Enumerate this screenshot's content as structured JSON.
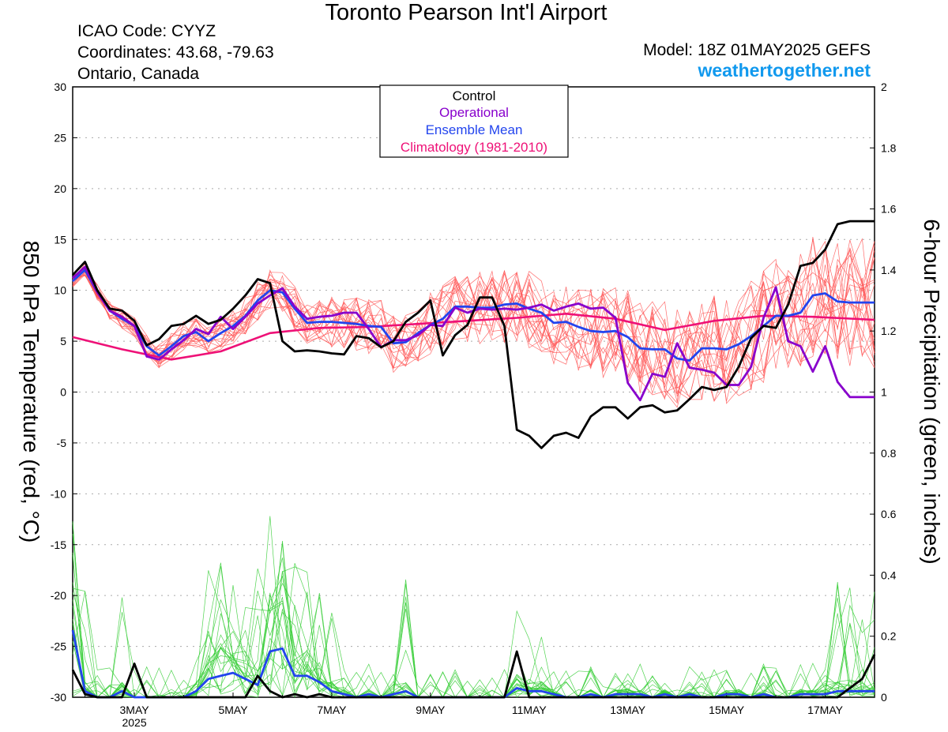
{
  "header": {
    "title": "Toronto Pearson Int'l Airport",
    "icao": "ICAO Code: CYYZ",
    "coords": "Coordinates: 43.68, -79.63",
    "region": "Ontario, Canada",
    "model": "Model: 18Z 01MAY2025 GEFS",
    "site": "weathertogether.net"
  },
  "colors": {
    "control": "#000000",
    "operational": "#8800cc",
    "ensemble_mean": "#2244ee",
    "climatology": "#ee1177",
    "members_temp": "#ff5555",
    "members_precip": "#33cc33",
    "site": "#1199ee"
  },
  "chart_data": {
    "type": "line",
    "title": "Toronto Pearson Int'l Airport",
    "ylabel": "850 hPa Temperature (red, °C)",
    "y2label": "6-hour Precipitation (green, inches)",
    "ylim": [
      -30,
      30
    ],
    "y2lim": [
      0,
      2
    ],
    "yticks": [
      -30,
      -25,
      -20,
      -15,
      -10,
      -5,
      0,
      5,
      10,
      15,
      20,
      25,
      30
    ],
    "y2ticks": [
      0,
      0.2,
      0.4,
      0.6,
      0.8,
      1,
      1.2,
      1.4,
      1.6,
      1.8,
      2
    ],
    "x_unit": "hours since 2025-05-01 18Z",
    "xlim": [
      0,
      390
    ],
    "xticks": [
      {
        "x": 30,
        "label": "3MAY",
        "sub": "2025"
      },
      {
        "x": 78,
        "label": "5MAY"
      },
      {
        "x": 126,
        "label": "7MAY"
      },
      {
        "x": 174,
        "label": "9MAY"
      },
      {
        "x": 222,
        "label": "11MAY"
      },
      {
        "x": 270,
        "label": "13MAY"
      },
      {
        "x": 318,
        "label": "15MAY"
      },
      {
        "x": 366,
        "label": "17MAY"
      }
    ],
    "legend": [
      "Control",
      "Operational",
      "Ensemble Mean",
      "Climatology (1981-2010)"
    ],
    "legend_position": "top-center",
    "grid": true,
    "series": [
      {
        "name": "Climatology (1981-2010)",
        "axis": "temp",
        "x": [
          0,
          24,
          48,
          72,
          96,
          120,
          144,
          168,
          192,
          216,
          240,
          264,
          288,
          312,
          336,
          360,
          390
        ],
        "values": [
          5.4,
          4.2,
          3.2,
          4.0,
          5.8,
          6.3,
          6.4,
          6.7,
          7.0,
          7.3,
          7.7,
          7.2,
          6.1,
          7.0,
          7.5,
          7.4,
          7.1
        ]
      },
      {
        "name": "Ensemble Mean",
        "axis": "temp",
        "x": [
          0,
          6,
          12,
          18,
          24,
          30,
          36,
          42,
          48,
          54,
          60,
          66,
          72,
          78,
          84,
          90,
          96,
          102,
          108,
          114,
          120,
          126,
          132,
          138,
          144,
          150,
          156,
          162,
          168,
          174,
          180,
          186,
          192,
          198,
          204,
          210,
          216,
          222,
          228,
          234,
          240,
          246,
          252,
          258,
          264,
          270,
          276,
          282,
          288,
          294,
          300,
          306,
          312,
          318,
          324,
          330,
          336,
          342,
          348,
          354,
          360,
          366,
          372,
          378,
          384,
          390
        ],
        "values": [
          10.9,
          12.0,
          9.8,
          8.0,
          7.2,
          6.5,
          4.5,
          3.6,
          4.5,
          5.5,
          5.9,
          5.0,
          5.8,
          6.5,
          7.5,
          9.0,
          10.0,
          9.8,
          8.2,
          6.8,
          6.9,
          6.9,
          6.8,
          6.7,
          6.5,
          6.4,
          4.8,
          4.9,
          5.8,
          6.6,
          7.2,
          8.4,
          8.4,
          8.3,
          8.3,
          8.6,
          8.7,
          8.2,
          7.8,
          6.8,
          6.9,
          6.4,
          6.0,
          5.9,
          6.0,
          5.4,
          4.3,
          4.2,
          4.2,
          3.3,
          3.1,
          4.3,
          4.3,
          4.2,
          4.7,
          5.5,
          6.5,
          7.5,
          7.5,
          7.8,
          9.5,
          9.7,
          8.9,
          8.8,
          8.8,
          8.8
        ]
      },
      {
        "name": "Operational",
        "axis": "temp",
        "x": [
          0,
          6,
          12,
          18,
          24,
          30,
          36,
          42,
          48,
          54,
          60,
          66,
          72,
          78,
          84,
          90,
          96,
          102,
          108,
          114,
          120,
          126,
          132,
          138,
          144,
          150,
          156,
          162,
          168,
          174,
          180,
          186,
          192,
          198,
          204,
          210,
          216,
          222,
          228,
          234,
          240,
          246,
          252,
          258,
          264,
          270,
          276,
          282,
          288,
          294,
          300,
          306,
          312,
          318,
          324,
          330,
          336,
          342,
          348,
          354,
          360,
          366,
          372,
          378,
          384,
          390
        ],
        "values": [
          11.2,
          12.3,
          9.8,
          8.0,
          7.4,
          6.5,
          3.5,
          3.2,
          4.2,
          5.1,
          6.2,
          5.7,
          7.4,
          6.2,
          7.4,
          8.7,
          9.5,
          10.2,
          8.4,
          7.2,
          7.4,
          7.5,
          7.8,
          7.8,
          6.2,
          4.4,
          5.1,
          5.1,
          5.6,
          6.6,
          6.5,
          8.3,
          7.8,
          8.2,
          8.1,
          8.2,
          8.1,
          8.3,
          8.6,
          8.0,
          8.4,
          8.7,
          8.2,
          8.3,
          7.3,
          0.9,
          -0.8,
          1.8,
          1.5,
          4.8,
          2.4,
          2.2,
          1.9,
          0.7,
          0.7,
          2.5,
          7.3,
          10.3,
          5.0,
          4.5,
          2.0,
          4.5,
          1.0,
          -0.5,
          -0.5,
          -0.5
        ]
      },
      {
        "name": "Control",
        "axis": "temp",
        "x": [
          0,
          6,
          12,
          18,
          24,
          30,
          36,
          42,
          48,
          54,
          60,
          66,
          72,
          78,
          84,
          90,
          96,
          102,
          108,
          114,
          120,
          126,
          132,
          138,
          144,
          150,
          156,
          162,
          168,
          174,
          180,
          186,
          192,
          198,
          204,
          210,
          216,
          222,
          228,
          234,
          240,
          246,
          252,
          258,
          264,
          270,
          276,
          282,
          288,
          294,
          300,
          306,
          312,
          318,
          324,
          330,
          336,
          342,
          348,
          354,
          360,
          366,
          372,
          378,
          384,
          390
        ],
        "values": [
          11.5,
          12.8,
          10.0,
          8.2,
          8.0,
          7.0,
          4.6,
          5.2,
          6.5,
          6.7,
          7.5,
          6.7,
          7.1,
          8.2,
          9.5,
          11.1,
          10.7,
          5.0,
          4.0,
          4.1,
          4.0,
          3.8,
          3.7,
          5.5,
          5.3,
          4.4,
          5.0,
          6.9,
          7.8,
          9.0,
          3.6,
          5.6,
          6.6,
          9.3,
          9.3,
          6.5,
          -3.7,
          -4.3,
          -5.5,
          -4.3,
          -4.0,
          -4.5,
          -2.4,
          -1.5,
          -1.5,
          -2.6,
          -1.5,
          -1.3,
          -2.0,
          -1.8,
          -0.7,
          0.5,
          0.2,
          0.5,
          2.5,
          5.3,
          6.5,
          6.3,
          8.6,
          12.4,
          12.7,
          14.0,
          16.5,
          16.8,
          16.8,
          16.8
        ]
      },
      {
        "name": "Ensemble Mean",
        "axis": "precip",
        "x": [
          0,
          6,
          12,
          18,
          24,
          30,
          36,
          42,
          48,
          54,
          60,
          66,
          72,
          78,
          84,
          90,
          96,
          102,
          108,
          114,
          120,
          126,
          132,
          138,
          144,
          150,
          156,
          162,
          168,
          174,
          180,
          186,
          192,
          198,
          204,
          210,
          216,
          222,
          228,
          234,
          240,
          246,
          252,
          258,
          264,
          270,
          276,
          282,
          288,
          294,
          300,
          306,
          312,
          318,
          324,
          330,
          336,
          342,
          348,
          354,
          360,
          366,
          372,
          378,
          384,
          390
        ],
        "values": [
          0.22,
          0.02,
          0.0,
          0.0,
          0.02,
          0.0,
          0.0,
          0.0,
          0.0,
          0.0,
          0.02,
          0.06,
          0.07,
          0.08,
          0.06,
          0.04,
          0.15,
          0.16,
          0.07,
          0.07,
          0.05,
          0.02,
          0.01,
          0.0,
          0.01,
          0.0,
          0.01,
          0.02,
          0.0,
          0.0,
          0.0,
          0.0,
          0.0,
          0.0,
          0.0,
          0.0,
          0.03,
          0.02,
          0.02,
          0.01,
          0.0,
          0.0,
          0.01,
          0.0,
          0.01,
          0.01,
          0.01,
          0.0,
          0.01,
          0.0,
          0.01,
          0.0,
          0.0,
          0.01,
          0.01,
          0.0,
          0.01,
          0.0,
          0.0,
          0.01,
          0.01,
          0.01,
          0.02,
          0.02,
          0.02,
          0.02
        ]
      },
      {
        "name": "Control",
        "axis": "precip",
        "x": [
          0,
          6,
          12,
          18,
          24,
          30,
          36,
          42,
          48,
          54,
          60,
          66,
          72,
          78,
          84,
          90,
          96,
          102,
          108,
          114,
          120,
          126,
          132,
          138,
          144,
          150,
          156,
          162,
          168,
          174,
          180,
          186,
          192,
          198,
          204,
          210,
          216,
          222,
          228,
          234,
          240,
          246,
          252,
          258,
          264,
          270,
          276,
          282,
          288,
          294,
          300,
          306,
          312,
          318,
          324,
          330,
          336,
          342,
          348,
          354,
          360,
          366,
          372,
          378,
          384,
          390
        ],
        "values": [
          0.09,
          0.01,
          0.0,
          0.0,
          0.0,
          0.11,
          0.0,
          0.0,
          0.0,
          0.0,
          0.0,
          0.0,
          0.0,
          0.0,
          0.0,
          0.07,
          0.02,
          0.0,
          0.01,
          0.0,
          0.01,
          0.0,
          0.0,
          0.0,
          0.0,
          0.0,
          0.0,
          0.0,
          0.0,
          0.0,
          0.0,
          0.0,
          0.0,
          0.0,
          0.0,
          0.0,
          0.15,
          0.0,
          0.0,
          0.0,
          0.0,
          0.0,
          0.0,
          0.0,
          0.0,
          0.0,
          0.0,
          0.0,
          0.0,
          0.0,
          0.0,
          0.0,
          0.0,
          0.0,
          0.0,
          0.0,
          0.0,
          0.0,
          0.0,
          0.0,
          0.0,
          0.0,
          0.0,
          0.03,
          0.06,
          0.14
        ]
      }
    ]
  }
}
